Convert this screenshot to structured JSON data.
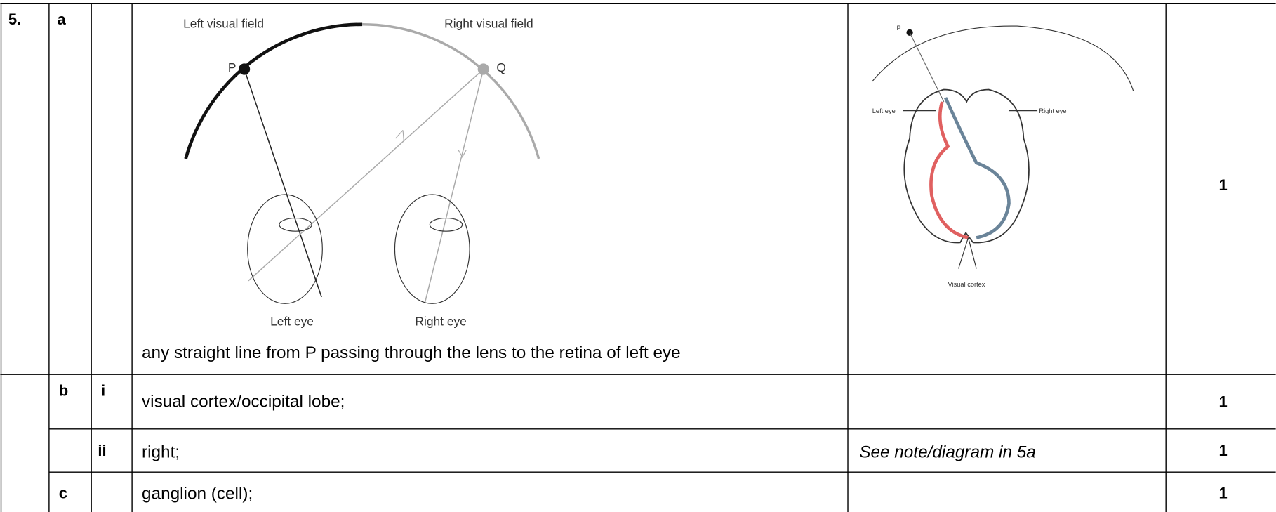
{
  "rows": [
    {
      "question": "5.",
      "part": "a",
      "answer": "any straight line from P passing through the lens to the retina of left eye",
      "marks": "1"
    },
    {
      "part": "b",
      "subpart": "i",
      "answer": "visual cortex/occipital lobe;",
      "marks": "1"
    },
    {
      "subpart": "ii",
      "answer": "right;",
      "notes": "See note/diagram in 5a",
      "marks": "1"
    },
    {
      "part": "c",
      "answer": "ganglion (cell);",
      "marks": "1"
    }
  ],
  "diagram_eyes": {
    "left_field": "Left visual field",
    "right_field": "Right visual field",
    "point_p": "P",
    "point_q": "Q",
    "left_eye": "Left eye",
    "right_eye": "Right eye"
  },
  "diagram_brain": {
    "point_p": "P",
    "left_eye": "Left eye",
    "right_eye": "Right eye",
    "cortex": "Visual cortex"
  }
}
